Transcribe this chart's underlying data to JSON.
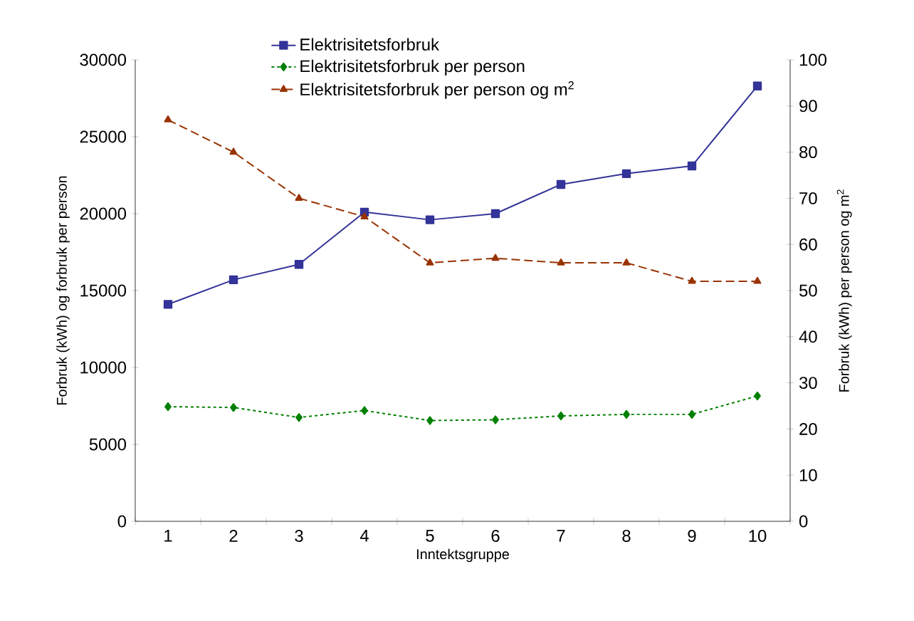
{
  "chart_data": {
    "type": "line",
    "categories": [
      "1",
      "2",
      "3",
      "4",
      "5",
      "6",
      "7",
      "8",
      "9",
      "10"
    ],
    "xlabel": "Inntektsgruppe",
    "ylabel": "Forbruk (kWh) og forbruk per person",
    "y2label": "Forbruk (kWh) per person og m$^{2}$",
    "ylim": [
      0,
      30000
    ],
    "yticks": [
      0,
      5000,
      10000,
      15000,
      20000,
      25000,
      30000
    ],
    "y2lim": [
      0,
      100
    ],
    "y2ticks": [
      0,
      10,
      20,
      30,
      40,
      50,
      60,
      70,
      80,
      90,
      100
    ],
    "legend": "top",
    "series": [
      {
        "name": "Elektrisitetsforbruk",
        "color": "#333399",
        "marker": "square",
        "line_style": "solid",
        "values": [
          14100,
          15700,
          16700,
          20100,
          19600,
          20000,
          21900,
          22600,
          23100,
          28300
        ]
      },
      {
        "name": "Elektrisitetsforbruk per person",
        "color": "#008000",
        "marker": "diamond",
        "line_style": "dotted",
        "values": [
          7450,
          7400,
          6750,
          7200,
          6550,
          6600,
          6850,
          6950,
          6950,
          8150
        ]
      },
      {
        "name": "Elektrisitetsforbruk per person og m$^{2}$",
        "color": "#993300",
        "marker": "triangle",
        "line_style": "dashed",
        "axis": "y2",
        "values": [
          87,
          80,
          70,
          66,
          56,
          57,
          56,
          56,
          52,
          52
        ]
      }
    ]
  }
}
